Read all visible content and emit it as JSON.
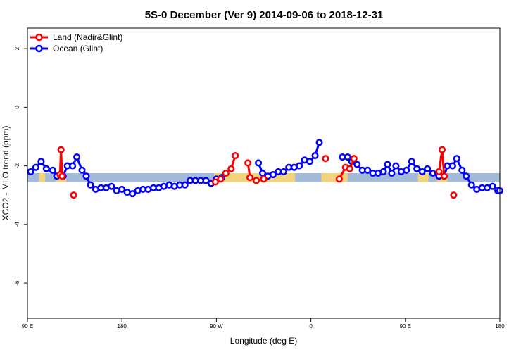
{
  "chart_data": {
    "type": "line",
    "title": "5S-0 December (Ver 9)   2014-09-06 to 2018-12-31",
    "xlabel": "Longitude (deg E)",
    "ylabel": "XCO2 - MLO trend (ppm)",
    "x_axis": {
      "range_deg_east": [
        90,
        540
      ],
      "ticks": [
        {
          "value": 90,
          "label": "90 E"
        },
        {
          "value": 180,
          "label": "180"
        },
        {
          "value": 270,
          "label": "90 W"
        },
        {
          "value": 360,
          "label": "0"
        },
        {
          "value": 450,
          "label": "90 E"
        },
        {
          "value": 540,
          "label": "180"
        }
      ]
    },
    "y_axis": {
      "range": [
        -7.2,
        2.7
      ],
      "ticks": [
        {
          "value": 2,
          "label": "2"
        },
        {
          "value": 0,
          "label": "0"
        },
        {
          "value": -2,
          "label": "-2"
        },
        {
          "value": -4,
          "label": "-4"
        },
        {
          "value": -6,
          "label": "-6"
        }
      ]
    },
    "background_band": {
      "y_range": [
        -2.55,
        -2.25
      ],
      "ocean_color": "#a3bad8",
      "land_color": "#f2d37a"
    },
    "land_segments_deg": [
      [
        101,
        107
      ],
      [
        117,
        127
      ],
      [
        268,
        345
      ],
      [
        370,
        395
      ],
      [
        462,
        472
      ],
      [
        480,
        490
      ]
    ],
    "series": [
      {
        "name": "Land (Nadir&Glint)",
        "color": "#ff0000",
        "segments": [
          [
            [
              121,
              -2.3
            ],
            [
              122,
              -1.45
            ],
            [
              123,
              -2.35
            ]
          ],
          [
            [
              134,
              -3.0
            ]
          ],
          [
            [
              269,
              -2.55
            ],
            [
              274,
              -2.45
            ]
          ],
          [
            [
              279,
              -2.25
            ],
            [
              284,
              -2.1
            ],
            [
              288,
              -1.65
            ]
          ],
          [
            [
              300,
              -1.9
            ],
            [
              302,
              -2.4
            ],
            [
              308,
              -2.5
            ],
            [
              315,
              -2.45
            ]
          ],
          [
            [
              374,
              -1.75
            ]
          ],
          [
            [
              387,
              -2.45
            ],
            [
              393,
              -2.05
            ],
            [
              397,
              -2.1
            ],
            [
              401,
              -1.75
            ]
          ],
          [
            [
              482,
              -2.2
            ],
            [
              485,
              -1.45
            ],
            [
              487,
              -2.35
            ]
          ],
          [
            [
              496,
              -3.0
            ]
          ]
        ]
      },
      {
        "name": "Ocean (Glint)",
        "color": "#0000ff",
        "segments": [
          [
            [
              93,
              -2.2
            ],
            [
              98,
              -2.05
            ],
            [
              103,
              -1.85
            ],
            [
              108,
              -2.1
            ],
            [
              114,
              -2.15
            ],
            [
              118,
              -2.35
            ],
            [
              124,
              -2.35
            ],
            [
              128,
              -2.0
            ],
            [
              133,
              -2.0
            ],
            [
              137,
              -1.7
            ],
            [
              142,
              -2.15
            ],
            [
              146,
              -2.35
            ],
            [
              150,
              -2.65
            ],
            [
              155,
              -2.8
            ],
            [
              160,
              -2.75
            ],
            [
              165,
              -2.75
            ],
            [
              170,
              -2.7
            ],
            [
              175,
              -2.85
            ],
            [
              180,
              -2.8
            ],
            [
              185,
              -2.9
            ],
            [
              190,
              -2.95
            ],
            [
              195,
              -2.85
            ],
            [
              200,
              -2.8
            ],
            [
              205,
              -2.8
            ],
            [
              210,
              -2.75
            ],
            [
              215,
              -2.75
            ],
            [
              220,
              -2.7
            ],
            [
              225,
              -2.65
            ],
            [
              230,
              -2.7
            ],
            [
              235,
              -2.65
            ],
            [
              240,
              -2.65
            ],
            [
              245,
              -2.5
            ],
            [
              250,
              -2.5
            ],
            [
              255,
              -2.5
            ],
            [
              260,
              -2.5
            ],
            [
              265,
              -2.6
            ],
            [
              270,
              -2.45
            ],
            [
              275,
              -2.4
            ]
          ],
          [
            [
              310,
              -1.9
            ],
            [
              314,
              -2.25
            ],
            [
              319,
              -2.35
            ],
            [
              324,
              -2.3
            ],
            [
              329,
              -2.2
            ],
            [
              334,
              -2.2
            ],
            [
              339,
              -2.05
            ],
            [
              344,
              -2.05
            ],
            [
              349,
              -2.0
            ],
            [
              354,
              -1.8
            ],
            [
              359,
              -1.85
            ],
            [
              364,
              -1.65
            ],
            [
              368,
              -1.2
            ]
          ],
          [
            [
              390,
              -1.7
            ],
            [
              395,
              -1.7
            ],
            [
              399,
              -1.85
            ],
            [
              404,
              -1.95
            ],
            [
              409,
              -2.15
            ],
            [
              414,
              -2.15
            ],
            [
              419,
              -2.25
            ],
            [
              424,
              -2.25
            ],
            [
              429,
              -2.2
            ],
            [
              433,
              -1.95
            ],
            [
              437,
              -2.25
            ],
            [
              441,
              -2.0
            ],
            [
              446,
              -2.2
            ],
            [
              451,
              -2.15
            ],
            [
              456,
              -1.85
            ],
            [
              461,
              -2.1
            ],
            [
              466,
              -2.2
            ],
            [
              471,
              -2.1
            ],
            [
              476,
              -2.25
            ],
            [
              482,
              -2.35
            ],
            [
              487,
              -2.35
            ],
            [
              490,
              -2.0
            ],
            [
              495,
              -2.0
            ],
            [
              499,
              -1.75
            ],
            [
              504,
              -2.15
            ],
            [
              508,
              -2.35
            ],
            [
              513,
              -2.65
            ],
            [
              518,
              -2.8
            ],
            [
              523,
              -2.75
            ],
            [
              528,
              -2.75
            ],
            [
              533,
              -2.7
            ],
            [
              538,
              -2.85
            ],
            [
              540,
              -2.85
            ]
          ]
        ]
      }
    ],
    "legend": {
      "position": "top-left",
      "entries": [
        {
          "label": "Land (Nadir&Glint)",
          "color": "#ff0000"
        },
        {
          "label": "Ocean (Glint)",
          "color": "#0000ff"
        }
      ]
    }
  }
}
